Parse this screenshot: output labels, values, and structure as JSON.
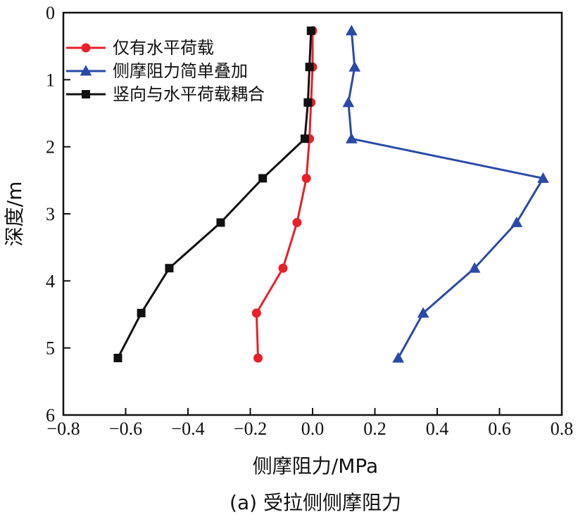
{
  "chart_data": {
    "type": "line",
    "caption": "(a) 受拉侧侧摩阻力",
    "xlabel": "侧摩阻力/MPa",
    "ylabel": "深度/m",
    "xlim": [
      -0.8,
      0.8
    ],
    "ylim": [
      0,
      6
    ],
    "y_inverted": true,
    "x_ticks": [
      -0.8,
      -0.6,
      -0.4,
      -0.2,
      0.0,
      0.2,
      0.4,
      0.6,
      0.8
    ],
    "x_tick_labels": [
      "−0.8",
      "−0.6",
      "−0.4",
      "−0.2",
      "0.0",
      "0.2",
      "0.4",
      "0.6",
      "0.8"
    ],
    "y_ticks": [
      0,
      1,
      2,
      3,
      4,
      5,
      6
    ],
    "y_tick_labels": [
      "0",
      "1",
      "2",
      "3",
      "4",
      "5",
      "6"
    ],
    "grid": false,
    "legend_position": "top-left",
    "series": [
      {
        "name": "仅有水平荷载",
        "color": "#e8202a",
        "marker": "circle",
        "x": [
          0.0,
          0.0,
          -0.005,
          -0.01,
          -0.02,
          -0.05,
          -0.095,
          -0.18,
          -0.175
        ],
        "y": [
          0.27,
          0.81,
          1.34,
          1.88,
          2.47,
          3.13,
          3.81,
          4.48,
          5.15
        ]
      },
      {
        "name": "侧摩阻力简单叠加",
        "color": "#2a4aa8",
        "marker": "triangle",
        "x": [
          0.125,
          0.135,
          0.115,
          0.125,
          0.74,
          0.655,
          0.52,
          0.355,
          0.275
        ],
        "y": [
          0.27,
          0.81,
          1.34,
          1.88,
          2.47,
          3.13,
          3.81,
          4.48,
          5.15
        ]
      },
      {
        "name": "竖向与水平荷载耦合",
        "color": "#111111",
        "marker": "square",
        "x": [
          -0.005,
          -0.01,
          -0.015,
          -0.025,
          -0.16,
          -0.295,
          -0.46,
          -0.55,
          -0.625
        ],
        "y": [
          0.27,
          0.81,
          1.34,
          1.88,
          2.47,
          3.13,
          3.81,
          4.48,
          5.15
        ]
      }
    ]
  }
}
